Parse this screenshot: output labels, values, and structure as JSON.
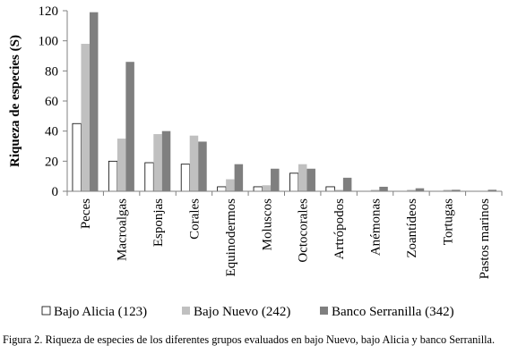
{
  "chart_data": {
    "type": "bar",
    "categories": [
      "Peces",
      "Macroalgas",
      "Esponjas",
      "Corales",
      "Equinodermos",
      "Moluscos",
      "Octocorales",
      "Artrópodos",
      "Anémonas",
      "Zoantídeos",
      "Tortugas",
      "Pastos marinos"
    ],
    "series": [
      {
        "name": "Bajo Alicia (123)",
        "color": "#ffffff",
        "values": [
          45,
          20,
          19,
          18,
          3,
          3,
          12,
          3,
          0,
          0,
          0,
          0
        ]
      },
      {
        "name": "Bajo Nuevo (242)",
        "color": "#c0c0c0",
        "values": [
          98,
          35,
          38,
          37,
          8,
          4,
          18,
          1,
          1,
          1,
          1,
          0
        ]
      },
      {
        "name": "Banco Serranilla (342)",
        "color": "#7f7f7f",
        "values": [
          119,
          86,
          40,
          33,
          18,
          15,
          15,
          9,
          3,
          2,
          1,
          1
        ]
      }
    ],
    "ylabel": "Riqueza de especies (S)",
    "xlabel": "",
    "ylim": [
      0,
      120
    ],
    "yticks": [
      0,
      20,
      40,
      60,
      80,
      100,
      120
    ],
    "grid": false,
    "legend": "bottom"
  },
  "caption": "Figura 2. Riqueza de especies de los diferentes grupos evaluados en bajo Nuevo, bajo Alicia y banco Serranilla."
}
